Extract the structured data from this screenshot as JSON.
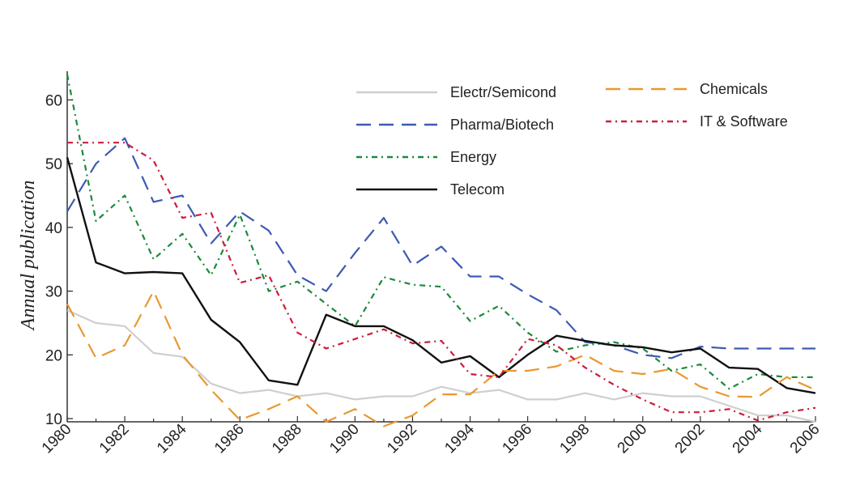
{
  "chart_data": {
    "type": "line",
    "title": "",
    "xlabel": "",
    "ylabel": "Annual publication",
    "xlim": [
      1980,
      2006
    ],
    "ylim": [
      9.5,
      64.5
    ],
    "yticks": [
      10,
      20,
      30,
      40,
      50,
      60
    ],
    "xticks": [
      1980,
      1982,
      1984,
      1986,
      1988,
      1990,
      1992,
      1994,
      1996,
      1998,
      2000,
      2002,
      2004,
      2006
    ],
    "grid": false,
    "legend_position": "top-right",
    "x": [
      1980,
      1981,
      1982,
      1983,
      1984,
      1985,
      1986,
      1987,
      1988,
      1989,
      1990,
      1991,
      1992,
      1993,
      1994,
      1995,
      1996,
      1997,
      1998,
      1999,
      2000,
      2001,
      2002,
      2003,
      2004,
      2005,
      2006
    ],
    "series": [
      {
        "name": "Electr/Semicond",
        "color": "#cfcfcf",
        "dash": "solid",
        "values": [
          27,
          25,
          24.5,
          20.3,
          19.7,
          15.5,
          14,
          14.5,
          13.5,
          14,
          13,
          13.5,
          13.5,
          15,
          14,
          14.5,
          13,
          13,
          14,
          13,
          14,
          13.5,
          13.5,
          12,
          10.5,
          10.5,
          9.5
        ]
      },
      {
        "name": "Pharma/Biotech",
        "color": "#3d5ab3",
        "dash": "longdash",
        "values": [
          42.5,
          50,
          54,
          44,
          45,
          37.5,
          42.5,
          39.5,
          32.5,
          30,
          36,
          41.5,
          34,
          37,
          32.3,
          32.3,
          29.5,
          27,
          22,
          21.5,
          20,
          19.5,
          21.3,
          21,
          21,
          21,
          21
        ]
      },
      {
        "name": "Energy",
        "color": "#1a8a3a",
        "dash": "dashdot",
        "values": [
          64,
          41,
          45,
          35,
          39,
          32.5,
          42,
          30,
          31.5,
          28,
          24.5,
          32.2,
          31,
          30.7,
          25.3,
          27.7,
          23.5,
          20.5,
          21.5,
          22,
          21,
          17.5,
          18.5,
          14.7,
          17,
          16.5,
          16.5
        ]
      },
      {
        "name": "Telecom",
        "color": "#111111",
        "dash": "solid",
        "values": [
          51,
          34.5,
          32.8,
          33,
          32.8,
          25.5,
          22,
          16,
          15.3,
          26.3,
          24.5,
          24.5,
          22.3,
          18.8,
          19.8,
          16.5,
          20,
          23,
          22.2,
          21.5,
          21.2,
          20.4,
          21,
          18,
          17.8,
          14.8,
          14
        ]
      },
      {
        "name": "Chemicals",
        "color": "#e99830",
        "dash": "longdash",
        "values": [
          28,
          19.5,
          21.5,
          30,
          20,
          14.5,
          9.8,
          11.5,
          13.5,
          9.5,
          11.5,
          8.8,
          10.5,
          13.8,
          13.8,
          17.5,
          17.5,
          18.2,
          20,
          17.5,
          17,
          17.8,
          15,
          13.5,
          13.4,
          16.5,
          14.5
        ]
      },
      {
        "name": "IT & Software",
        "color": "#cc1c3c",
        "dash": "dashdot",
        "values": [
          53.3,
          53.3,
          53.3,
          50.5,
          41.5,
          42.3,
          31.3,
          32.5,
          23.5,
          21,
          22.5,
          24,
          21.8,
          22.2,
          17,
          16.5,
          22.5,
          21.5,
          18,
          15.3,
          13,
          11,
          11,
          11.5,
          9.7,
          11,
          11.7
        ]
      }
    ]
  }
}
